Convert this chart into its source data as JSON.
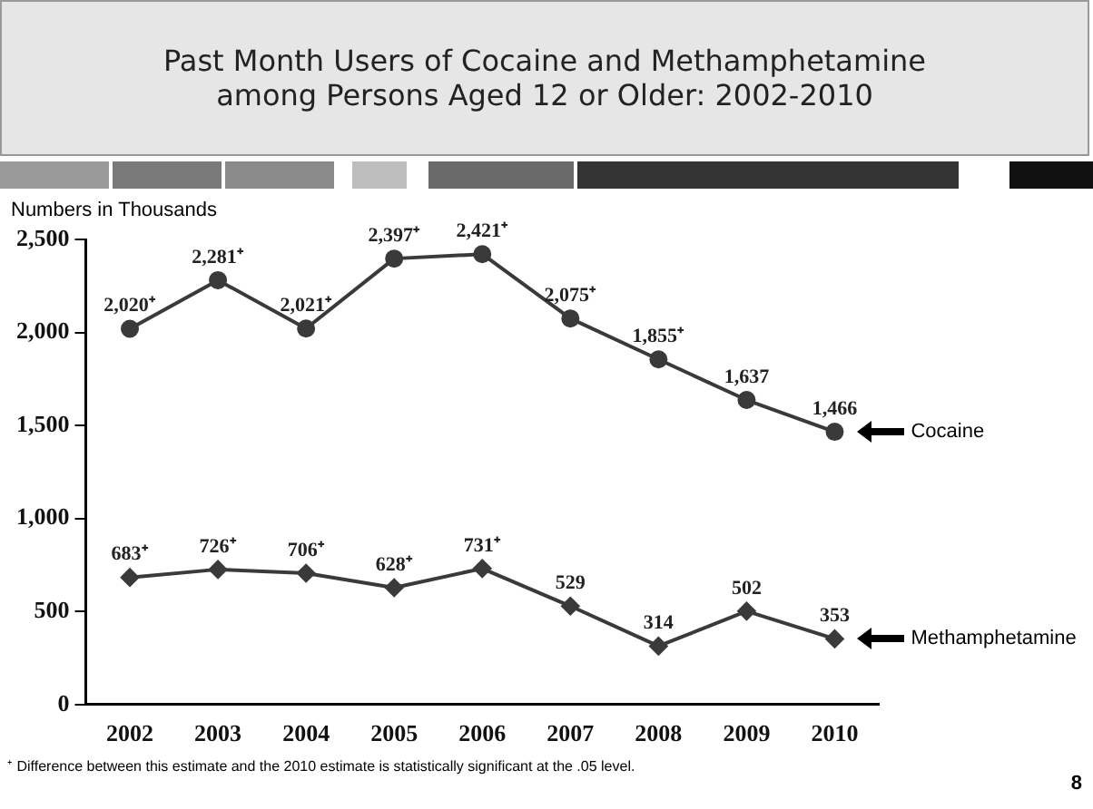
{
  "chart_data": {
    "type": "line",
    "title": "Past Month Users of Cocaine and Methamphetamine among Persons Aged 12 or Older: 2002-2010",
    "ylabel": "Numbers in Thousands",
    "categories": [
      "2002",
      "2003",
      "2004",
      "2005",
      "2006",
      "2007",
      "2008",
      "2009",
      "2010"
    ],
    "series": [
      {
        "name": "Cocaine",
        "color": "#3a3a3a",
        "marker": "circle",
        "values": [
          2020,
          2281,
          2021,
          2397,
          2421,
          2075,
          1855,
          1637,
          1466
        ],
        "value_labels": [
          "2,020⁺",
          "2,281⁺",
          "2,021⁺",
          "2,397⁺",
          "2,421⁺",
          "2,075⁺",
          "1,855⁺",
          "1,637",
          "1,466"
        ]
      },
      {
        "name": "Methamphetamine",
        "color": "#3a3a3a",
        "marker": "diamond",
        "values": [
          683,
          726,
          706,
          628,
          731,
          529,
          314,
          502,
          353
        ],
        "value_labels": [
          "683⁺",
          "726⁺",
          "706⁺",
          "628⁺",
          "731⁺",
          "529",
          "314",
          "502",
          "353"
        ]
      }
    ],
    "ylim": [
      0,
      2500
    ],
    "yticks": [
      {
        "value": 0,
        "label": "0"
      },
      {
        "value": 500,
        "label": "500"
      },
      {
        "value": 1000,
        "label": "1,000"
      },
      {
        "value": 1500,
        "label": "1,500"
      },
      {
        "value": 2000,
        "label": "2,000"
      },
      {
        "value": 2500,
        "label": "2,500"
      }
    ],
    "grid": false,
    "legend": false,
    "line_style": "solid",
    "annotations": [
      "⁺ Difference between this estimate and the 2010 estimate is statistically significant at the .05 level.",
      "8"
    ]
  }
}
